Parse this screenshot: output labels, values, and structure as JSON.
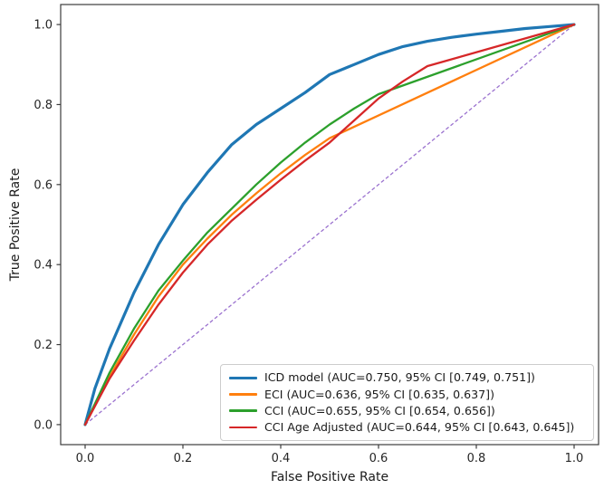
{
  "figure": {
    "title": "",
    "background_color": "#ffffff",
    "spine_color": "#3c3c3c",
    "tick_label_color": "#262626"
  },
  "chart_data": {
    "type": "line",
    "title": "",
    "xlabel": "False Positive Rate",
    "ylabel": "True Positive Rate",
    "xlim": [
      -0.05,
      1.05
    ],
    "ylim": [
      -0.05,
      1.05
    ],
    "x_ticks": [
      "0.0",
      "0.2",
      "0.4",
      "0.6",
      "0.8",
      "1.0"
    ],
    "y_ticks": [
      "0.0",
      "0.2",
      "0.4",
      "0.6",
      "0.8",
      "1.0"
    ],
    "x_tick_values": [
      0.0,
      0.2,
      0.4,
      0.6,
      0.8,
      1.0
    ],
    "y_tick_values": [
      0.0,
      0.2,
      0.4,
      0.6,
      0.8,
      1.0
    ],
    "grid": false,
    "legend_position": "lower right",
    "reference_line": {
      "name": "chance-diagonal",
      "style": "dashed",
      "color": "#9b72cf",
      "linewidth": 1.3,
      "points": [
        [
          0,
          0
        ],
        [
          1,
          1
        ]
      ]
    },
    "series": [
      {
        "name": "ICD model",
        "label": "ICD model (AUC=0.750, 95% CI [0.749, 0.751])",
        "color": "#1f77b4",
        "linewidth": 3.2,
        "auc": 0.75,
        "ci": [
          0.749,
          0.751
        ],
        "points": [
          [
            0,
            0
          ],
          [
            0.02,
            0.09
          ],
          [
            0.05,
            0.19
          ],
          [
            0.1,
            0.33
          ],
          [
            0.15,
            0.45
          ],
          [
            0.2,
            0.55
          ],
          [
            0.25,
            0.63
          ],
          [
            0.3,
            0.7
          ],
          [
            0.35,
            0.75
          ],
          [
            0.4,
            0.79
          ],
          [
            0.45,
            0.83
          ],
          [
            0.5,
            0.875
          ],
          [
            0.55,
            0.9
          ],
          [
            0.6,
            0.925
          ],
          [
            0.65,
            0.945
          ],
          [
            0.7,
            0.958
          ],
          [
            0.75,
            0.968
          ],
          [
            0.8,
            0.976
          ],
          [
            0.85,
            0.983
          ],
          [
            0.9,
            0.99
          ],
          [
            0.95,
            0.995
          ],
          [
            1,
            1
          ]
        ]
      },
      {
        "name": "ECI",
        "label": "ECI (AUC=0.636, 95% CI [0.635, 0.637])",
        "color": "#ff7f0e",
        "linewidth": 2.3,
        "auc": 0.636,
        "ci": [
          0.635,
          0.637
        ],
        "points": [
          [
            0,
            0
          ],
          [
            0.05,
            0.12
          ],
          [
            0.1,
            0.225
          ],
          [
            0.15,
            0.32
          ],
          [
            0.2,
            0.4
          ],
          [
            0.25,
            0.465
          ],
          [
            0.3,
            0.525
          ],
          [
            0.35,
            0.578
          ],
          [
            0.4,
            0.628
          ],
          [
            0.45,
            0.674
          ],
          [
            0.5,
            0.716
          ],
          [
            1,
            1
          ]
        ]
      },
      {
        "name": "CCI",
        "label": "CCI (AUC=0.655, 95% CI [0.654, 0.656])",
        "color": "#2ca02c",
        "linewidth": 2.3,
        "auc": 0.655,
        "ci": [
          0.654,
          0.656
        ],
        "points": [
          [
            0,
            0
          ],
          [
            0.05,
            0.13
          ],
          [
            0.1,
            0.24
          ],
          [
            0.15,
            0.335
          ],
          [
            0.2,
            0.41
          ],
          [
            0.25,
            0.48
          ],
          [
            0.3,
            0.54
          ],
          [
            0.35,
            0.6
          ],
          [
            0.4,
            0.655
          ],
          [
            0.45,
            0.705
          ],
          [
            0.5,
            0.75
          ],
          [
            0.55,
            0.79
          ],
          [
            0.6,
            0.826
          ],
          [
            1,
            1
          ]
        ]
      },
      {
        "name": "CCI Age Adjusted",
        "label": "CCI Age Adjusted (AUC=0.644, 95% CI [0.643, 0.645])",
        "color": "#d62728",
        "linewidth": 2.3,
        "auc": 0.644,
        "ci": [
          0.643,
          0.645
        ],
        "points": [
          [
            0,
            0
          ],
          [
            0.05,
            0.115
          ],
          [
            0.1,
            0.21
          ],
          [
            0.15,
            0.3
          ],
          [
            0.2,
            0.38
          ],
          [
            0.25,
            0.45
          ],
          [
            0.3,
            0.51
          ],
          [
            0.35,
            0.562
          ],
          [
            0.4,
            0.612
          ],
          [
            0.45,
            0.66
          ],
          [
            0.5,
            0.705
          ],
          [
            0.55,
            0.76
          ],
          [
            0.6,
            0.815
          ],
          [
            0.65,
            0.858
          ],
          [
            0.7,
            0.896
          ],
          [
            1,
            1
          ]
        ]
      }
    ]
  }
}
